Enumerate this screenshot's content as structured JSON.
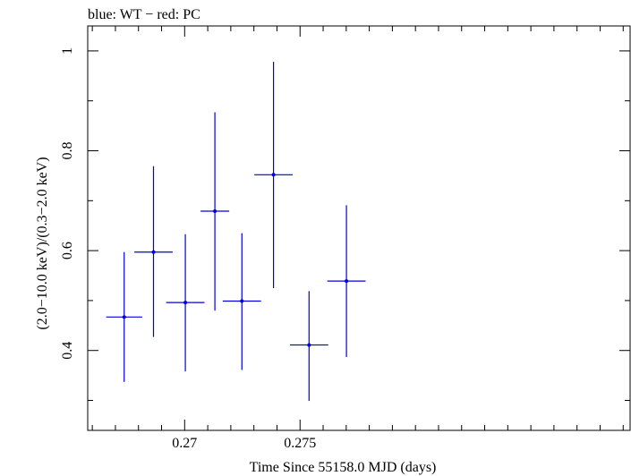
{
  "chart_data": {
    "type": "scatter",
    "title": "blue: WT − red: PC",
    "xlabel": "Time Since 55158.0 MJD (days)",
    "ylabel": "(2.0−10.0 keV)/(0.3−2.0 keV)",
    "xlim": [
      0.2658,
      0.2893
    ],
    "ylim": [
      0.24,
      1.05
    ],
    "x_ticks": [
      0.27,
      0.275
    ],
    "x_tick_labels": [
      "0.27",
      "0.275"
    ],
    "y_ticks": [
      0.4,
      0.6,
      0.8,
      1
    ],
    "y_tick_labels": [
      "0.4",
      "0.6",
      "0.8",
      "1"
    ],
    "grid": false,
    "series": [
      {
        "color": "#0000dd",
        "points": [
          {
            "x": 0.26738,
            "y": 0.467,
            "xerr": 0.00078,
            "yerr_low": 0.13,
            "yerr_high": 0.13
          },
          {
            "x": 0.26865,
            "y": 0.597,
            "xerr": 0.00083,
            "yerr_low": 0.17,
            "yerr_high": 0.172
          },
          {
            "x": 0.27003,
            "y": 0.496,
            "xerr": 0.00083,
            "yerr_low": 0.138,
            "yerr_high": 0.137
          },
          {
            "x": 0.27131,
            "y": 0.679,
            "xerr": 0.00062,
            "yerr_low": 0.199,
            "yerr_high": 0.198
          },
          {
            "x": 0.27248,
            "y": 0.499,
            "xerr": 0.00083,
            "yerr_low": 0.138,
            "yerr_high": 0.136
          },
          {
            "x": 0.27385,
            "y": 0.752,
            "xerr": 0.00083,
            "yerr_low": 0.227,
            "yerr_high": 0.226
          },
          {
            "x": 0.27539,
            "y": 0.411,
            "xerr": 0.00083,
            "yerr_low": 0.112,
            "yerr_high": 0.108
          },
          {
            "x": 0.27701,
            "y": 0.539,
            "xerr": 0.00083,
            "yerr_low": 0.152,
            "yerr_high": 0.152
          }
        ]
      }
    ]
  }
}
